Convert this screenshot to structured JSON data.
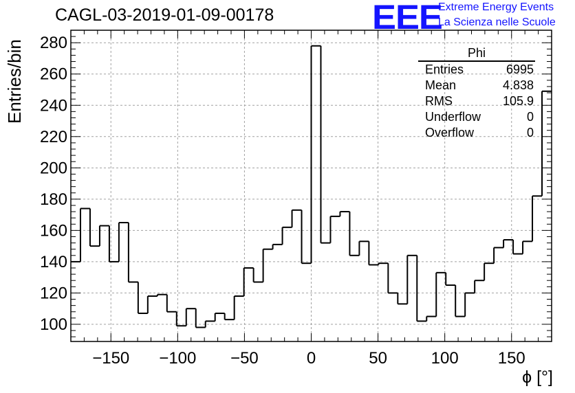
{
  "title": "CAGL-03-2019-01-09-00178",
  "logo": {
    "mark": "EEE",
    "line1": "Extreme Energy Events",
    "line2": "La Scienza nelle Scuole",
    "color": "#1414ff"
  },
  "stats": {
    "title": "Phi",
    "rows": [
      {
        "label": "Entries",
        "value": "6995"
      },
      {
        "label": "Mean",
        "value": "4.838"
      },
      {
        "label": "RMS",
        "value": "105.9"
      },
      {
        "label": "Underflow",
        "value": "0"
      },
      {
        "label": "Overflow",
        "value": "0"
      }
    ]
  },
  "chart_data": {
    "type": "bar",
    "style": "step-histogram",
    "title": "CAGL-03-2019-01-09-00178",
    "xlabel": "ϕ [°]",
    "ylabel": "Entries/bin",
    "xlim": [
      -180,
      180
    ],
    "ylim": [
      89,
      288
    ],
    "bin_width": 7.2,
    "bin_start": -180,
    "values": [
      140,
      174,
      150,
      163,
      140,
      165,
      127,
      107,
      118,
      119,
      108,
      99,
      110,
      98,
      102,
      107,
      103,
      118,
      136,
      127,
      148,
      151,
      162,
      173,
      139,
      278,
      152,
      169,
      172,
      144,
      153,
      138,
      139,
      120,
      113,
      144,
      102,
      105,
      133,
      125,
      105,
      120,
      128,
      139,
      149,
      154,
      145,
      153,
      182,
      249
    ],
    "xticks": [
      -150,
      -100,
      -50,
      0,
      50,
      100,
      150
    ],
    "xtick_labels": [
      "−150",
      "−100",
      "−50",
      "0",
      "50",
      "100",
      "150"
    ],
    "yticks": [
      100,
      120,
      140,
      160,
      180,
      200,
      220,
      240,
      260,
      280
    ],
    "ytick_labels": [
      "100",
      "120",
      "140",
      "160",
      "180",
      "200",
      "220",
      "240",
      "260",
      "280"
    ],
    "grid": true,
    "line_color": "#000000",
    "grid_color": "#a0a0a0"
  }
}
